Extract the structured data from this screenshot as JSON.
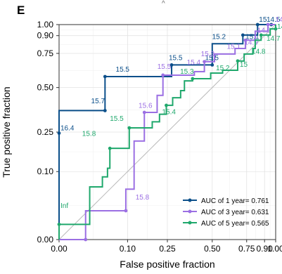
{
  "chart_data": {
    "type": "line",
    "panel_label": "E",
    "top_fragment": "^",
    "xlabel": "False positive fraction",
    "ylabel": "True positive fraction",
    "x_ticks": [
      {
        "value": 0.0,
        "label": "0.00"
      },
      {
        "value": 0.1,
        "label": "0.10"
      },
      {
        "value": 0.25,
        "label": "0.25"
      },
      {
        "value": 0.5,
        "label": "0.50"
      },
      {
        "value": 0.75,
        "label": "0.75"
      },
      {
        "value": 0.9,
        "label": "0.90"
      },
      {
        "value": 1.0,
        "label": "1.00"
      }
    ],
    "y_ticks": [
      {
        "value": 0.0,
        "label": "0.00"
      },
      {
        "value": 0.1,
        "label": "0.10"
      },
      {
        "value": 0.25,
        "label": "0.25"
      },
      {
        "value": 0.5,
        "label": "0.50"
      },
      {
        "value": 0.75,
        "label": "0.75"
      },
      {
        "value": 0.9,
        "label": "0.90"
      },
      {
        "value": 1.0,
        "label": "1.00"
      }
    ],
    "xlim": [
      0,
      1
    ],
    "ylim": [
      0,
      1
    ],
    "scale": "sqrt",
    "grid": true,
    "diagonal_reference": true,
    "legend_position": "bottom-right",
    "series": [
      {
        "name": "AUC of 1 year= 0.761",
        "color": "#0b4f8a",
        "points": [
          [
            0.0,
            0.0
          ],
          [
            0.0,
            0.245
          ],
          [
            0.0,
            0.36
          ],
          [
            0.045,
            0.36
          ],
          [
            0.045,
            0.575
          ],
          [
            0.27,
            0.575
          ],
          [
            0.27,
            0.66
          ],
          [
            0.5,
            0.66
          ],
          [
            0.5,
            0.83
          ],
          [
            0.72,
            0.83
          ],
          [
            0.72,
            0.905
          ],
          [
            0.84,
            0.905
          ],
          [
            0.84,
            1.0
          ],
          [
            1.0,
            1.0
          ]
        ],
        "labels": [
          {
            "x": 0.0,
            "y": 0.245,
            "text": "16.4"
          },
          {
            "x": 0.02,
            "y": 0.385,
            "text": "15.7"
          },
          {
            "x": 0.065,
            "y": 0.59,
            "text": "15.5"
          },
          {
            "x": 0.25,
            "y": 0.675,
            "text": "15.5"
          },
          {
            "x": 0.445,
            "y": 0.675,
            "text": "15.5"
          },
          {
            "x": 0.49,
            "y": 0.845,
            "text": "15.2"
          },
          {
            "x": 0.73,
            "y": 0.845,
            "text": "15.1"
          },
          {
            "x": 0.84,
            "y": 1.0,
            "text": "15"
          },
          {
            "x": 0.905,
            "y": 1.0,
            "text": "14.5"
          }
        ],
        "dots": [
          [
            0.0,
            0.245
          ],
          [
            0.045,
            0.36
          ],
          [
            0.045,
            0.575
          ],
          [
            0.27,
            0.66
          ],
          [
            0.5,
            0.66
          ],
          [
            0.72,
            0.905
          ],
          [
            0.84,
            1.0
          ],
          [
            0.96,
            1.0
          ]
        ]
      },
      {
        "name": "AUC of 3 year= 0.631",
        "color": "#9b6fe3",
        "points": [
          [
            0.0,
            0.0
          ],
          [
            0.015,
            0.0
          ],
          [
            0.015,
            0.018
          ],
          [
            0.095,
            0.018
          ],
          [
            0.095,
            0.055
          ],
          [
            0.12,
            0.055
          ],
          [
            0.12,
            0.21
          ],
          [
            0.155,
            0.21
          ],
          [
            0.155,
            0.35
          ],
          [
            0.205,
            0.35
          ],
          [
            0.205,
            0.45
          ],
          [
            0.23,
            0.45
          ],
          [
            0.23,
            0.585
          ],
          [
            0.39,
            0.585
          ],
          [
            0.39,
            0.61
          ],
          [
            0.45,
            0.61
          ],
          [
            0.45,
            0.685
          ],
          [
            0.515,
            0.685
          ],
          [
            0.515,
            0.745
          ],
          [
            0.66,
            0.745
          ],
          [
            0.66,
            0.79
          ],
          [
            0.74,
            0.79
          ],
          [
            0.74,
            0.86
          ],
          [
            0.82,
            0.86
          ],
          [
            0.82,
            0.94
          ],
          [
            0.93,
            0.94
          ],
          [
            0.93,
            1.0
          ],
          [
            1.0,
            1.0
          ]
        ],
        "labels": [
          {
            "x": 0.12,
            "y": 0.03,
            "text": "15.8"
          },
          {
            "x": 0.13,
            "y": 0.36,
            "text": "15.6"
          },
          {
            "x": 0.2,
            "y": 0.61,
            "text": "15.5"
          },
          {
            "x": 0.34,
            "y": 0.64,
            "text": "15.4"
          },
          {
            "x": 0.42,
            "y": 0.705,
            "text": "15.3"
          },
          {
            "x": 0.59,
            "y": 0.765,
            "text": "15.1"
          },
          {
            "x": 0.72,
            "y": 0.8,
            "text": "14.9"
          },
          {
            "x": 0.825,
            "y": 0.9,
            "text": "14.8"
          },
          {
            "x": 0.985,
            "y": 1.0,
            "text": "14"
          }
        ],
        "dots": [
          [
            0.015,
            0.0
          ],
          [
            0.095,
            0.018
          ],
          [
            0.155,
            0.35
          ],
          [
            0.23,
            0.585
          ],
          [
            0.45,
            0.685
          ],
          [
            0.74,
            0.86
          ],
          [
            0.93,
            1.0
          ]
        ]
      },
      {
        "name": "AUC of 5 year= 0.565",
        "color": "#1fa86c",
        "points": [
          [
            0.0,
            0.0
          ],
          [
            0.0,
            0.005
          ],
          [
            0.02,
            0.005
          ],
          [
            0.02,
            0.06
          ],
          [
            0.04,
            0.06
          ],
          [
            0.04,
            0.085
          ],
          [
            0.05,
            0.085
          ],
          [
            0.05,
            0.11
          ],
          [
            0.055,
            0.11
          ],
          [
            0.055,
            0.18
          ],
          [
            0.105,
            0.18
          ],
          [
            0.105,
            0.27
          ],
          [
            0.185,
            0.27
          ],
          [
            0.185,
            0.3
          ],
          [
            0.215,
            0.3
          ],
          [
            0.215,
            0.34
          ],
          [
            0.245,
            0.34
          ],
          [
            0.245,
            0.39
          ],
          [
            0.275,
            0.39
          ],
          [
            0.275,
            0.435
          ],
          [
            0.315,
            0.435
          ],
          [
            0.315,
            0.48
          ],
          [
            0.335,
            0.48
          ],
          [
            0.335,
            0.545
          ],
          [
            0.38,
            0.545
          ],
          [
            0.38,
            0.56
          ],
          [
            0.49,
            0.56
          ],
          [
            0.49,
            0.6
          ],
          [
            0.57,
            0.6
          ],
          [
            0.57,
            0.62
          ],
          [
            0.68,
            0.62
          ],
          [
            0.68,
            0.69
          ],
          [
            0.73,
            0.69
          ],
          [
            0.73,
            0.745
          ],
          [
            0.8,
            0.745
          ],
          [
            0.8,
            0.79
          ],
          [
            0.82,
            0.79
          ],
          [
            0.82,
            0.86
          ],
          [
            0.87,
            0.86
          ],
          [
            0.87,
            0.905
          ],
          [
            0.95,
            0.905
          ],
          [
            0.95,
            0.96
          ],
          [
            1.0,
            0.96
          ],
          [
            1.0,
            1.0
          ]
        ],
        "labels": [
          {
            "x": 0.0,
            "y": 0.018,
            "text": "Inf"
          },
          {
            "x": 0.01,
            "y": 0.22,
            "text": "15.8"
          },
          {
            "x": 0.052,
            "y": 0.29,
            "text": "15.5"
          },
          {
            "x": 0.22,
            "y": 0.325,
            "text": "15.4"
          },
          {
            "x": 0.305,
            "y": 0.575,
            "text": "15.3"
          },
          {
            "x": 0.515,
            "y": 0.6,
            "text": "15.2"
          },
          {
            "x": 0.685,
            "y": 0.625,
            "text": "15"
          },
          {
            "x": 0.78,
            "y": 0.725,
            "text": "14.8"
          },
          {
            "x": 0.905,
            "y": 0.83,
            "text": "14.7"
          },
          {
            "x": 1.0,
            "y": 0.935,
            "text": "14.1"
          }
        ],
        "dots": [
          [
            0.0,
            0.005
          ],
          [
            0.055,
            0.18
          ],
          [
            0.105,
            0.27
          ],
          [
            0.245,
            0.39
          ],
          [
            0.38,
            0.56
          ],
          [
            0.68,
            0.69
          ],
          [
            0.87,
            0.905
          ],
          [
            1.0,
            0.96
          ]
        ]
      }
    ]
  }
}
